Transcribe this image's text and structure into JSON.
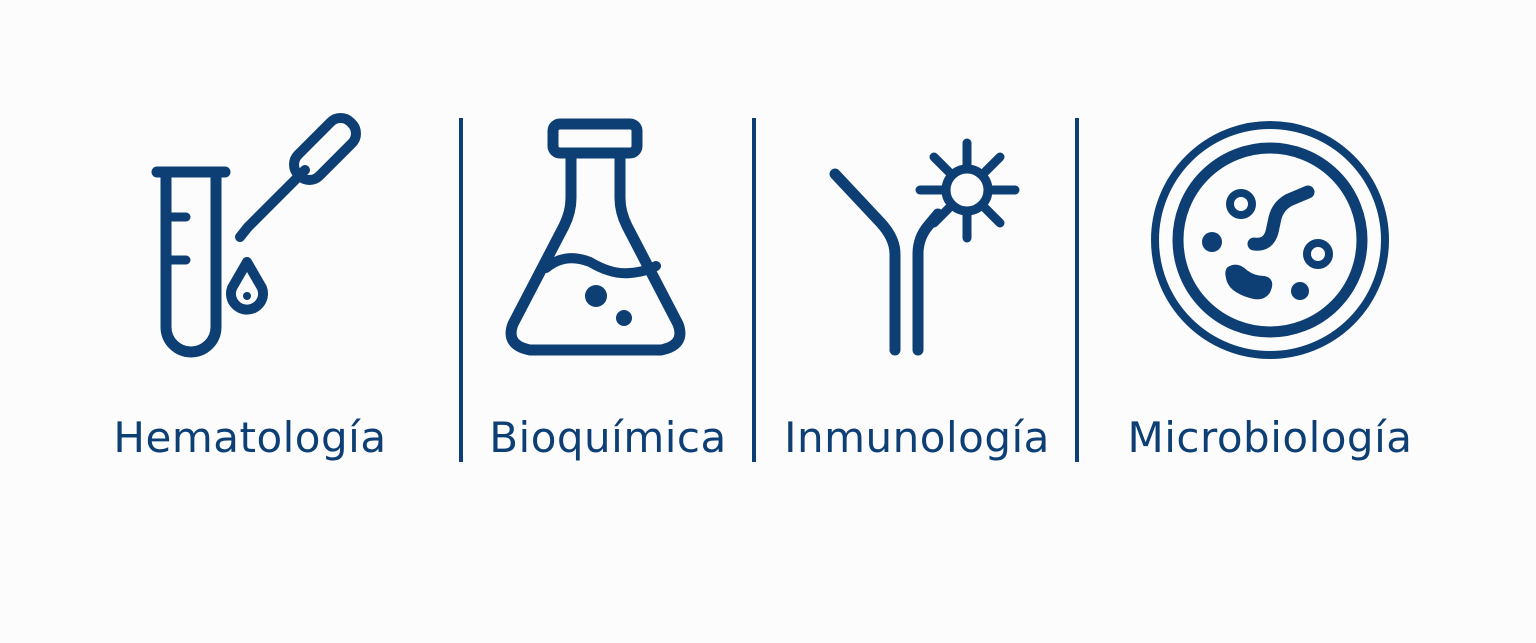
{
  "colors": {
    "icon": "#0d3f74",
    "background": "#fcfcfc"
  },
  "categories": [
    {
      "icon": "test-tube-pipette-icon",
      "label": "Hematología"
    },
    {
      "icon": "erlenmeyer-flask-icon",
      "label": "Bioquímica"
    },
    {
      "icon": "antibody-antigen-icon",
      "label": "Inmunología"
    },
    {
      "icon": "petri-dish-microbes-icon",
      "label": "Microbiología"
    }
  ]
}
